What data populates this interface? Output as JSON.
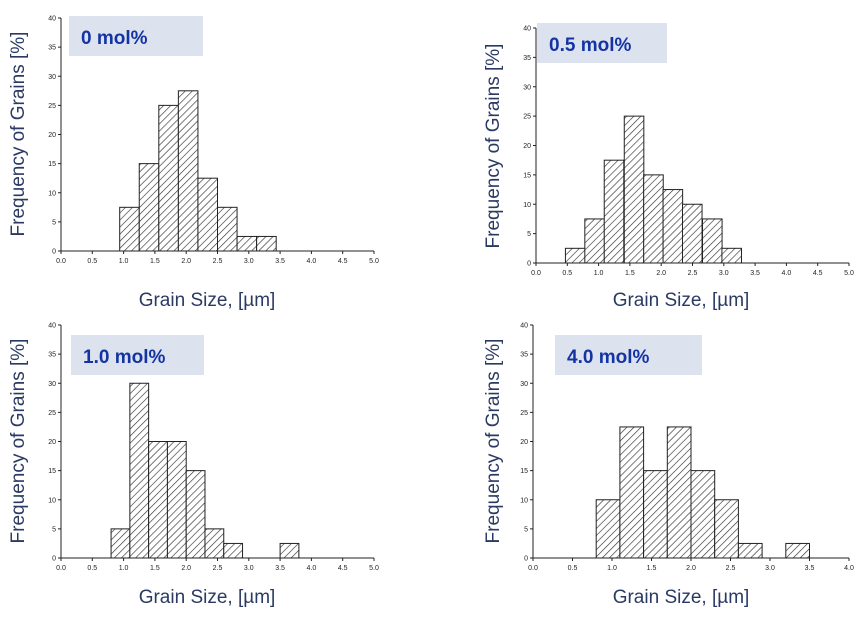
{
  "chart_data": [
    {
      "type": "bar",
      "title": "0 mol%",
      "xlabel": "Grain Size, [µm]",
      "ylabel": "Frequency of Grains [%]",
      "xlim": [
        0,
        5
      ],
      "ylim": [
        0,
        40
      ],
      "xticks": [
        "0.0",
        "0.5",
        "1.0",
        "1.5",
        "2.0",
        "2.5",
        "3.0",
        "3.5",
        "4.0",
        "4.5",
        "5.0"
      ],
      "yticks": [
        "0",
        "5",
        "10",
        "15",
        "20",
        "25",
        "30",
        "35",
        "40"
      ],
      "bin_width": 0.3125,
      "bins": [
        {
          "x": 0.9375,
          "value": 7.5
        },
        {
          "x": 1.25,
          "value": 15
        },
        {
          "x": 1.5625,
          "value": 25
        },
        {
          "x": 1.875,
          "value": 27.5
        },
        {
          "x": 2.1875,
          "value": 12.5
        },
        {
          "x": 2.5,
          "value": 7.5
        },
        {
          "x": 2.8125,
          "value": 2.5
        },
        {
          "x": 3.125,
          "value": 2.5
        }
      ]
    },
    {
      "type": "bar",
      "title": "0.5 mol%",
      "xlabel": "Grain Size, [µm]",
      "ylabel": "Frequency of Grains [%]",
      "xlim": [
        0,
        5
      ],
      "ylim": [
        0,
        40
      ],
      "xticks": [
        "0.0",
        "0.5",
        "1.0",
        "1.5",
        "2.0",
        "2.5",
        "3.0",
        "3.5",
        "4.0",
        "4.5",
        "5.0"
      ],
      "yticks": [
        "0",
        "5",
        "10",
        "15",
        "20",
        "25",
        "30",
        "35",
        "40"
      ],
      "bin_width": 0.3125,
      "bins": [
        {
          "x": 0.47,
          "value": 2.5
        },
        {
          "x": 0.78,
          "value": 7.5
        },
        {
          "x": 1.09,
          "value": 17.5
        },
        {
          "x": 1.41,
          "value": 25
        },
        {
          "x": 1.72,
          "value": 15
        },
        {
          "x": 2.03,
          "value": 12.5
        },
        {
          "x": 2.34,
          "value": 10
        },
        {
          "x": 2.66,
          "value": 7.5
        },
        {
          "x": 2.97,
          "value": 2.5
        }
      ]
    },
    {
      "type": "bar",
      "title": "1.0 mol%",
      "xlabel": "Grain Size, [µm]",
      "ylabel": "Frequency of Grains [%]",
      "xlim": [
        0,
        5
      ],
      "ylim": [
        0,
        40
      ],
      "xticks": [
        "0.0",
        "0.5",
        "1.0",
        "1.5",
        "2.0",
        "2.5",
        "3.0",
        "3.5",
        "4.0",
        "4.5",
        "5.0"
      ],
      "yticks": [
        "0",
        "5",
        "10",
        "15",
        "20",
        "25",
        "30",
        "35",
        "40"
      ],
      "bin_width": 0.3,
      "bins": [
        {
          "x": 0.8,
          "value": 5
        },
        {
          "x": 1.1,
          "value": 30
        },
        {
          "x": 1.4,
          "value": 20
        },
        {
          "x": 1.7,
          "value": 20
        },
        {
          "x": 2.0,
          "value": 15
        },
        {
          "x": 2.3,
          "value": 5
        },
        {
          "x": 2.6,
          "value": 2.5
        },
        {
          "x": 3.5,
          "value": 2.5
        }
      ]
    },
    {
      "type": "bar",
      "title": "4.0 mol%",
      "xlabel": "Grain Size, [µm]",
      "ylabel": "Frequency of Grains [%]",
      "xlim": [
        0,
        4
      ],
      "ylim": [
        0,
        40
      ],
      "xticks": [
        "0.0",
        "0.5",
        "1.0",
        "1.5",
        "2.0",
        "2.5",
        "3.0",
        "3.5",
        "4.0"
      ],
      "yticks": [
        "0",
        "5",
        "10",
        "15",
        "20",
        "25",
        "30",
        "35",
        "40"
      ],
      "bin_width": 0.3,
      "bins": [
        {
          "x": 0.8,
          "value": 10
        },
        {
          "x": 1.1,
          "value": 22.5
        },
        {
          "x": 1.4,
          "value": 15
        },
        {
          "x": 1.7,
          "value": 22.5
        },
        {
          "x": 2.0,
          "value": 15
        },
        {
          "x": 2.3,
          "value": 10
        },
        {
          "x": 2.6,
          "value": 2.5
        },
        {
          "x": 3.2,
          "value": 2.5
        }
      ]
    }
  ],
  "style": {
    "tag_background": "#dde3ee",
    "tag_text_color": "#1434a4",
    "axis_title_color": "#2a3a63",
    "bar_fill": "#ffffff",
    "bar_hatch": "#333333",
    "bar_stroke": "#222222"
  }
}
